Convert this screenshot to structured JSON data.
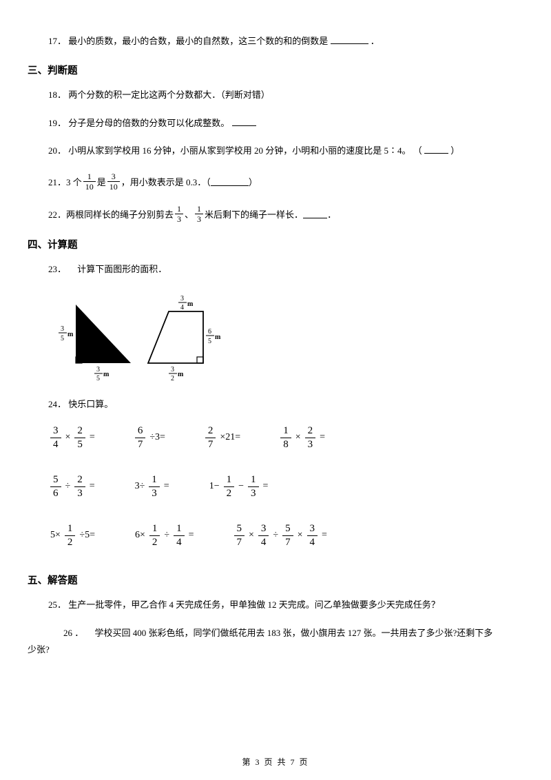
{
  "q17": {
    "num": "17．",
    "text": "最小的质数，最小的合数，最小的自然数，这三个数的和的倒数是",
    "tail": "．"
  },
  "section3": "三、判断题",
  "q18": {
    "num": "18．",
    "text": "两个分数的积一定比这两个分数都大．（判断对错）"
  },
  "q19": {
    "num": "19．",
    "text": "分子是分母的倍数的分数可以化成整数。"
  },
  "q20": {
    "num": "20．",
    "text": "小明从家到学校用 16 分钟，小丽从家到学校用 20 分钟，小明和小丽的速度比是 5∶4。 （",
    "tail": "）"
  },
  "q21": {
    "num": "21．",
    "pre": "3 个 ",
    "f1n": "1",
    "f1d": "10",
    "mid": "是 ",
    "f2n": "3",
    "f2d": "10",
    "post": "，用小数表示是 0.3．（",
    "tail": "）"
  },
  "q22": {
    "num": "22．",
    "pre": "两根同样长的绳子分别剪去",
    "f1n": "1",
    "f1d": "3",
    "mid": "、",
    "f2n": "1",
    "f2d": "3",
    "post": "米后剩下的绳子一样长．",
    "tail": "．"
  },
  "section4": "四、计算题",
  "q23": {
    "num": "23．",
    "text": "　计算下面图形的面积．"
  },
  "figure": {
    "left_side": {
      "n": "3",
      "d": "5",
      "unit": "m"
    },
    "tri_base": {
      "n": "3",
      "d": "5",
      "unit": "m"
    },
    "trap_top": {
      "n": "3",
      "d": "4",
      "unit": "m"
    },
    "trap_right": {
      "n": "6",
      "d": "5",
      "unit": "m"
    },
    "trap_base": {
      "n": "3",
      "d": "2",
      "unit": "m"
    }
  },
  "q24": {
    "num": "24．",
    "text": "快乐口算。"
  },
  "calc": {
    "row1": [
      {
        "parts": [
          {
            "f": [
              "3",
              "4"
            ]
          },
          {
            "t": "×"
          },
          {
            "f": [
              "2",
              "5"
            ]
          },
          {
            "t": "="
          }
        ]
      },
      {
        "parts": [
          {
            "f": [
              "6",
              "7"
            ]
          },
          {
            "t": "÷3="
          }
        ]
      },
      {
        "parts": [
          {
            "f": [
              "2",
              "7"
            ]
          },
          {
            "t": "×21="
          }
        ]
      },
      {
        "parts": [
          {
            "f": [
              "1",
              "8"
            ]
          },
          {
            "t": "×"
          },
          {
            "f": [
              "2",
              "3"
            ]
          },
          {
            "t": "="
          }
        ]
      }
    ],
    "row2": [
      {
        "parts": [
          {
            "f": [
              "5",
              "6"
            ]
          },
          {
            "t": "÷"
          },
          {
            "f": [
              "2",
              "3"
            ]
          },
          {
            "t": "="
          }
        ]
      },
      {
        "parts": [
          {
            "t": "3÷"
          },
          {
            "f": [
              "1",
              "3"
            ]
          },
          {
            "t": "="
          }
        ]
      },
      {
        "parts": [
          {
            "t": "1−"
          },
          {
            "f": [
              "1",
              "2"
            ]
          },
          {
            "t": "−"
          },
          {
            "f": [
              "1",
              "3"
            ]
          },
          {
            "t": "="
          }
        ]
      }
    ],
    "row3": [
      {
        "parts": [
          {
            "t": "5×"
          },
          {
            "f": [
              "1",
              "2"
            ]
          },
          {
            "t": "÷5="
          }
        ]
      },
      {
        "parts": [
          {
            "t": "6×"
          },
          {
            "f": [
              "1",
              "2"
            ]
          },
          {
            "t": "÷"
          },
          {
            "f": [
              "1",
              "4"
            ]
          },
          {
            "t": "="
          }
        ]
      },
      {
        "parts": [
          {
            "f": [
              "5",
              "7"
            ]
          },
          {
            "t": "×"
          },
          {
            "f": [
              "3",
              "4"
            ]
          },
          {
            "t": "÷"
          },
          {
            "f": [
              "5",
              "7"
            ]
          },
          {
            "t": "×"
          },
          {
            "f": [
              "3",
              "4"
            ]
          },
          {
            "t": "="
          }
        ]
      }
    ]
  },
  "section5": "五、解答题",
  "q25": {
    "num": "25．",
    "text": "生产一批零件，甲乙合作 4 天完成任务，甲单独做 12 天完成。问乙单独做要多少天完成任务？"
  },
  "q26": {
    "num": "26 ．",
    "text": "　学校买回 400 张彩色纸，同学们做纸花用去 183 张，做小旗用去 127 张。一共用去了多少张?还剩下多",
    "text2": "少张?"
  },
  "footer": "第 3 页 共 7 页"
}
